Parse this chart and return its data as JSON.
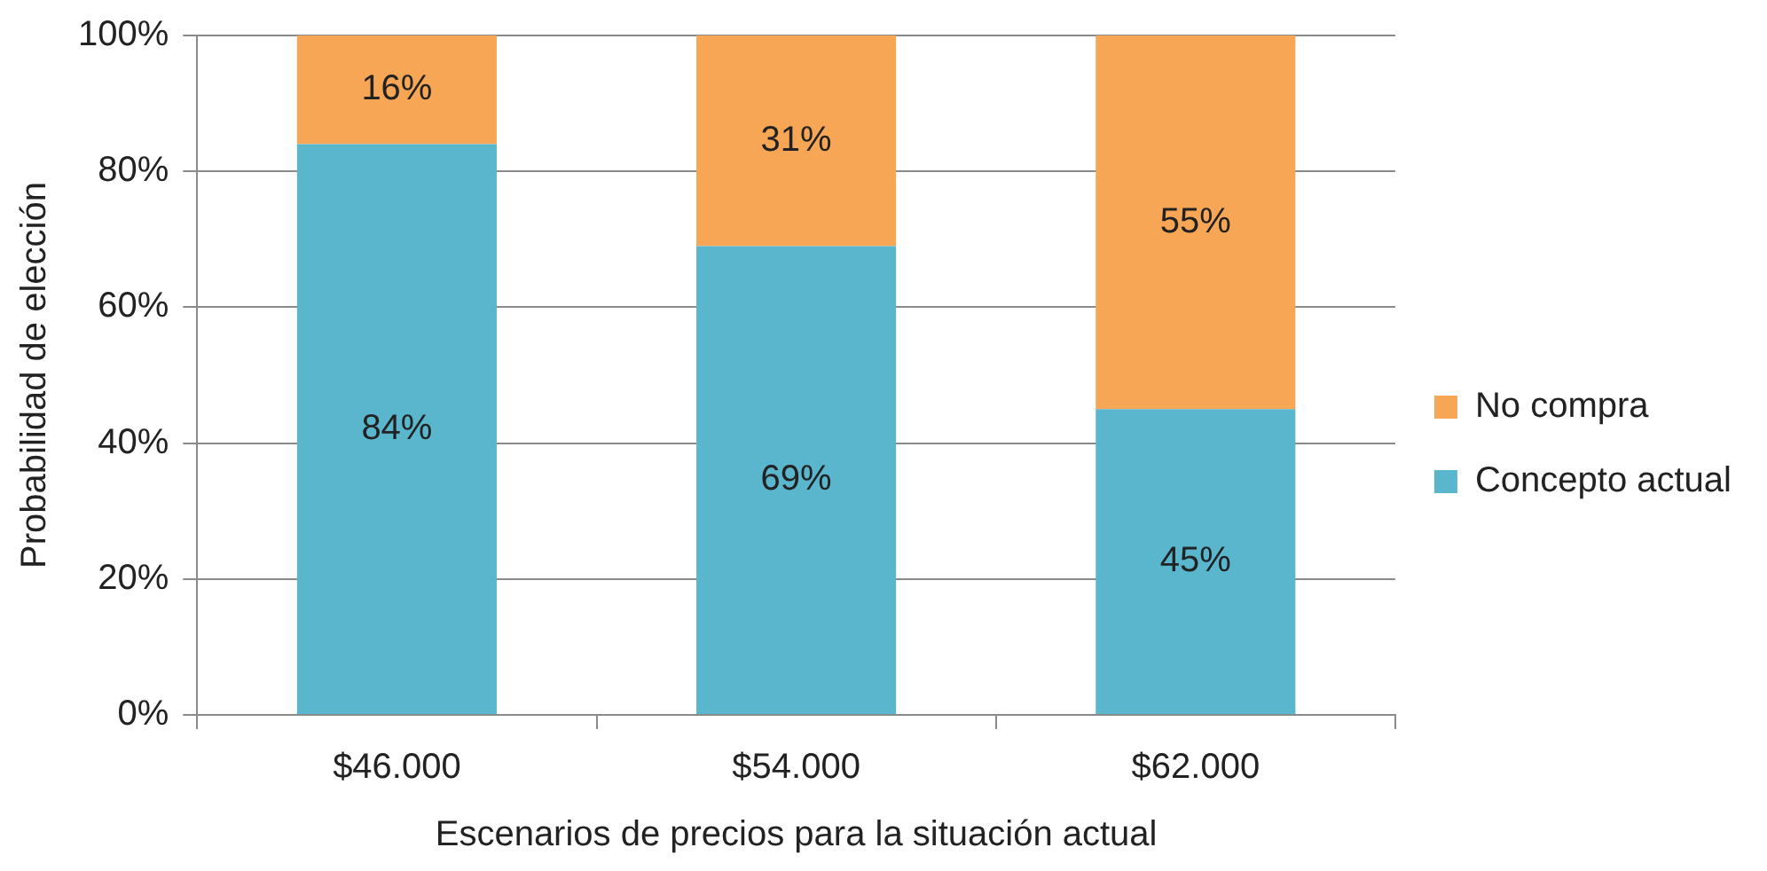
{
  "chart_data": {
    "type": "bar",
    "stacked": true,
    "xlabel": "Escenarios de precios para la situación actual",
    "ylabel": "Probabilidad de elección",
    "categories": [
      "$46.000",
      "$54.000",
      "$62.000"
    ],
    "series": [
      {
        "name": "Concepto actual",
        "color": "#5ab6cd",
        "values": [
          84,
          69,
          45
        ],
        "value_labels": [
          "84%",
          "69%",
          "45%"
        ]
      },
      {
        "name": "No compra",
        "color": "#f6a654",
        "values": [
          16,
          31,
          55
        ],
        "value_labels": [
          "16%",
          "31%",
          "55%"
        ]
      }
    ],
    "ylim": [
      0,
      100
    ],
    "yticks": [
      {
        "value": 0,
        "label": "0%"
      },
      {
        "value": 20,
        "label": "20%"
      },
      {
        "value": 40,
        "label": "40%"
      },
      {
        "value": 60,
        "label": "60%"
      },
      {
        "value": 80,
        "label": "80%"
      },
      {
        "value": 100,
        "label": "100%"
      }
    ],
    "grid": "y",
    "legend": "right"
  }
}
